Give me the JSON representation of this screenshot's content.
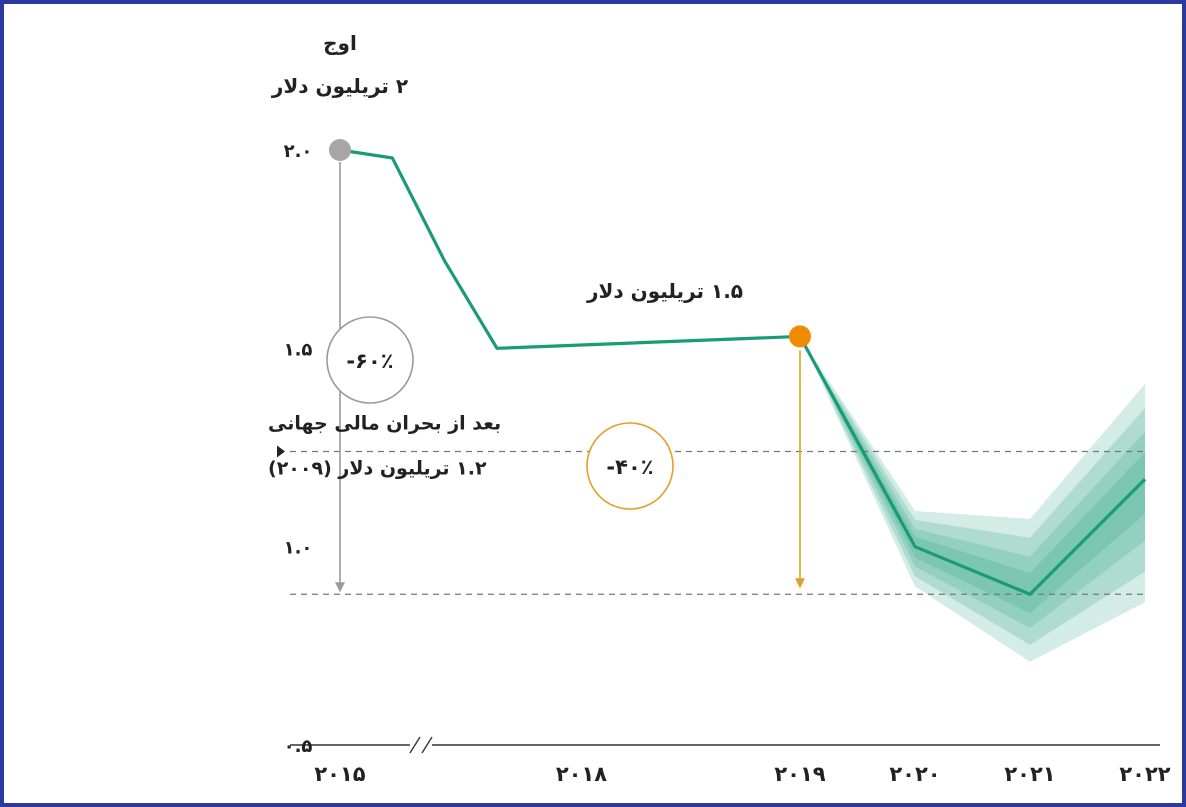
{
  "chart_data": {
    "type": "line",
    "categories": [
      "۲۰۱۵",
      "۲۰۱۸",
      "۲۰۱۹",
      "۲۰۲۰",
      "۲۰۲۱",
      "۲۰۲۲"
    ],
    "y_ticks": [
      "۲.۰",
      "۱.۵",
      "۱.۰",
      "۰.۵"
    ],
    "ylim": [
      0.5,
      2.0
    ],
    "grid": false,
    "series": [
      {
        "points": [
          {
            "x": 2015.0,
            "y": 2.0
          },
          {
            "x": 2016.0,
            "y": 1.98
          },
          {
            "x": 2017.0,
            "y": 1.72
          },
          {
            "x": 2018.0,
            "y": 1.5
          },
          {
            "x": 2019.0,
            "y": 1.53
          },
          {
            "x": 2020.0,
            "y": 1.0
          },
          {
            "x": 2021.0,
            "y": 0.88
          },
          {
            "x": 2022.0,
            "y": 1.17
          }
        ],
        "color": "#1a9b78"
      }
    ],
    "forecast_band": {
      "start_x": 2019.0,
      "upper": [
        {
          "x": 2019.0,
          "y": 1.53
        },
        {
          "x": 2020.0,
          "y": 1.09
        },
        {
          "x": 2021.0,
          "y": 1.07
        },
        {
          "x": 2022.0,
          "y": 1.41
        }
      ],
      "lower": [
        {
          "x": 2019.0,
          "y": 1.53
        },
        {
          "x": 2020.0,
          "y": 0.9
        },
        {
          "x": 2021.0,
          "y": 0.71
        },
        {
          "x": 2022.0,
          "y": 0.86
        }
      ],
      "color": "#1a9b78"
    },
    "reference_lines": [
      {
        "y": 1.24,
        "label_line1": "بعد از بحران مالی جهانی",
        "label_line2": "۱.۲ تریلیون دلار (۲۰۰۹)"
      },
      {
        "y": 0.88
      }
    ],
    "annotations": {
      "peak": {
        "x": 2015.0,
        "y": 2.0,
        "line1": "اوج",
        "line2": "۲ تریلیون دلار",
        "color": "#a6a6a6"
      },
      "mid": {
        "x": 2019.0,
        "y": 1.53,
        "text": "۱.۵ تریلیون دلار",
        "color": "#f08c00"
      },
      "drop_peak": {
        "text": "-۶۰٪",
        "color": "#9a9a9a",
        "from_y": 2.0,
        "to_y": 0.88
      },
      "drop_mid": {
        "text": "-۴۰٪",
        "color": "#e1a028",
        "from_y": 1.53,
        "to_y": 0.88
      }
    },
    "axis_break_symbol": "//"
  }
}
